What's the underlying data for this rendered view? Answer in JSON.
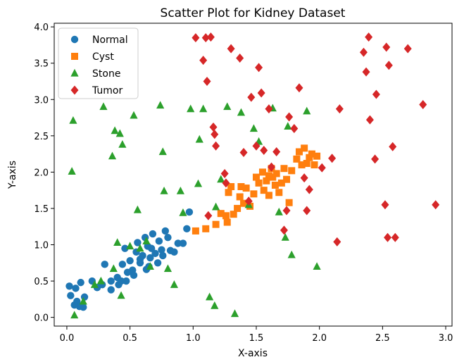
{
  "chart_data": {
    "type": "scatter",
    "title": "Scatter Plot for Kidney Dataset",
    "xlabel": "X-axis",
    "ylabel": "Y-axis",
    "xlim": [
      -0.1,
      3.05
    ],
    "ylim": [
      -0.12,
      4.05
    ],
    "x_ticks": [
      "0.0",
      "0.5",
      "1.0",
      "1.5",
      "2.0",
      "2.5",
      "3.0"
    ],
    "y_ticks": [
      "0.0",
      "0.5",
      "1.0",
      "1.5",
      "2.0",
      "2.5",
      "3.0",
      "3.5",
      "4.0"
    ],
    "grid": false,
    "legend_position": "top-left",
    "series": [
      {
        "name": "Normal",
        "marker": "circle",
        "color": "#1f77b4",
        "points": [
          [
            0.02,
            0.43
          ],
          [
            0.03,
            0.3
          ],
          [
            0.07,
            0.4
          ],
          [
            0.08,
            0.22
          ],
          [
            0.1,
            0.15
          ],
          [
            0.11,
            0.48
          ],
          [
            0.13,
            0.14
          ],
          [
            0.14,
            0.28
          ],
          [
            0.06,
            0.17
          ],
          [
            0.2,
            0.5
          ],
          [
            0.24,
            0.41
          ],
          [
            0.28,
            0.45
          ],
          [
            0.3,
            0.73
          ],
          [
            0.35,
            0.38
          ],
          [
            0.35,
            0.5
          ],
          [
            0.4,
            0.55
          ],
          [
            0.41,
            0.45
          ],
          [
            0.43,
            0.5
          ],
          [
            0.44,
            0.73
          ],
          [
            0.46,
            0.95
          ],
          [
            0.47,
            0.5
          ],
          [
            0.5,
            0.78
          ],
          [
            0.52,
            0.65
          ],
          [
            0.53,
            0.58
          ],
          [
            0.55,
            0.9
          ],
          [
            0.56,
            1.03
          ],
          [
            0.58,
            0.75
          ],
          [
            0.6,
            0.85
          ],
          [
            0.62,
            1.1
          ],
          [
            0.63,
            0.66
          ],
          [
            0.65,
            0.7
          ],
          [
            0.66,
            0.82
          ],
          [
            0.67,
            0.95
          ],
          [
            0.68,
            1.15
          ],
          [
            0.7,
            0.88
          ],
          [
            0.72,
            0.75
          ],
          [
            0.73,
            1.05
          ],
          [
            0.75,
            0.93
          ],
          [
            0.78,
            1.19
          ],
          [
            0.8,
            1.1
          ],
          [
            0.82,
            0.92
          ],
          [
            0.85,
            0.9
          ],
          [
            0.88,
            1.02
          ],
          [
            0.92,
            1.02
          ],
          [
            0.95,
            1.22
          ],
          [
            0.97,
            1.45
          ],
          [
            0.48,
            0.62
          ],
          [
            0.58,
            0.8
          ],
          [
            0.64,
            0.98
          ],
          [
            0.76,
            0.85
          ]
        ]
      },
      {
        "name": "Cyst",
        "marker": "square",
        "color": "#ff7f0e",
        "points": [
          [
            1.02,
            1.19
          ],
          [
            1.1,
            1.22
          ],
          [
            1.18,
            1.28
          ],
          [
            1.22,
            1.43
          ],
          [
            1.26,
            1.4
          ],
          [
            1.27,
            1.31
          ],
          [
            1.28,
            1.72
          ],
          [
            1.3,
            1.8
          ],
          [
            1.32,
            1.42
          ],
          [
            1.35,
            1.5
          ],
          [
            1.37,
            1.66
          ],
          [
            1.38,
            1.8
          ],
          [
            1.4,
            1.57
          ],
          [
            1.42,
            1.78
          ],
          [
            1.45,
            1.53
          ],
          [
            1.48,
            1.7
          ],
          [
            1.5,
            1.93
          ],
          [
            1.52,
            1.85
          ],
          [
            1.55,
            2.0
          ],
          [
            1.56,
            1.75
          ],
          [
            1.58,
            1.88
          ],
          [
            1.6,
            1.68
          ],
          [
            1.62,
            2.05
          ],
          [
            1.63,
            1.93
          ],
          [
            1.65,
            1.82
          ],
          [
            1.66,
            1.98
          ],
          [
            1.68,
            1.72
          ],
          [
            1.7,
            1.85
          ],
          [
            1.72,
            2.05
          ],
          [
            1.74,
            1.9
          ],
          [
            1.76,
            1.58
          ],
          [
            1.78,
            2.02
          ],
          [
            1.82,
            2.18
          ],
          [
            1.84,
            2.28
          ],
          [
            1.86,
            2.1
          ],
          [
            1.88,
            2.33
          ],
          [
            1.9,
            2.12
          ],
          [
            1.92,
            2.2
          ],
          [
            1.94,
            2.25
          ],
          [
            1.96,
            2.1
          ],
          [
            1.98,
            2.22
          ],
          [
            1.6,
            1.95
          ]
        ]
      },
      {
        "name": "Stone",
        "marker": "triangle",
        "color": "#2ca02c",
        "points": [
          [
            0.04,
            2.01
          ],
          [
            0.05,
            2.71
          ],
          [
            0.06,
            0.03
          ],
          [
            0.13,
            0.22
          ],
          [
            0.22,
            0.45
          ],
          [
            0.27,
            0.5
          ],
          [
            0.29,
            2.9
          ],
          [
            0.36,
            2.22
          ],
          [
            0.37,
            0.67
          ],
          [
            0.38,
            2.57
          ],
          [
            0.4,
            1.03
          ],
          [
            0.42,
            2.53
          ],
          [
            0.43,
            0.3
          ],
          [
            0.44,
            2.38
          ],
          [
            0.5,
            0.98
          ],
          [
            0.53,
            2.78
          ],
          [
            0.56,
            1.48
          ],
          [
            0.58,
            0.95
          ],
          [
            0.63,
            1.05
          ],
          [
            0.66,
            0.7
          ],
          [
            0.74,
            2.92
          ],
          [
            0.76,
            2.28
          ],
          [
            0.77,
            1.74
          ],
          [
            0.8,
            0.67
          ],
          [
            0.85,
            0.45
          ],
          [
            0.9,
            1.74
          ],
          [
            0.92,
            1.44
          ],
          [
            0.98,
            2.87
          ],
          [
            1.04,
            1.84
          ],
          [
            1.05,
            2.45
          ],
          [
            1.08,
            2.87
          ],
          [
            1.13,
            0.28
          ],
          [
            1.17,
            0.16
          ],
          [
            1.18,
            1.52
          ],
          [
            1.22,
            1.9
          ],
          [
            1.27,
            2.9
          ],
          [
            1.33,
            0.05
          ],
          [
            1.38,
            2.82
          ],
          [
            1.44,
            1.55
          ],
          [
            1.48,
            2.6
          ],
          [
            1.52,
            2.42
          ],
          [
            1.63,
            2.88
          ],
          [
            1.73,
            1.1
          ],
          [
            1.75,
            2.63
          ],
          [
            1.78,
            0.86
          ],
          [
            1.9,
            2.84
          ],
          [
            1.98,
            0.7
          ],
          [
            1.68,
            1.45
          ]
        ]
      },
      {
        "name": "Tumor",
        "marker": "diamond",
        "color": "#d62728",
        "points": [
          [
            1.02,
            3.85
          ],
          [
            1.08,
            3.54
          ],
          [
            1.1,
            3.85
          ],
          [
            1.11,
            3.25
          ],
          [
            1.14,
            3.86
          ],
          [
            1.16,
            2.62
          ],
          [
            1.17,
            2.52
          ],
          [
            1.18,
            2.36
          ],
          [
            1.12,
            1.4
          ],
          [
            1.25,
            1.98
          ],
          [
            1.26,
            1.85
          ],
          [
            1.3,
            3.7
          ],
          [
            1.37,
            3.57
          ],
          [
            1.4,
            2.27
          ],
          [
            1.44,
            1.6
          ],
          [
            1.46,
            3.03
          ],
          [
            1.5,
            2.36
          ],
          [
            1.52,
            3.44
          ],
          [
            1.54,
            3.09
          ],
          [
            1.56,
            2.3
          ],
          [
            1.6,
            2.87
          ],
          [
            1.62,
            2.07
          ],
          [
            1.66,
            2.28
          ],
          [
            1.72,
            1.2
          ],
          [
            1.74,
            1.47
          ],
          [
            1.76,
            2.76
          ],
          [
            1.8,
            2.6
          ],
          [
            1.84,
            3.16
          ],
          [
            1.88,
            1.92
          ],
          [
            1.9,
            1.47
          ],
          [
            1.92,
            1.76
          ],
          [
            2.02,
            2.06
          ],
          [
            2.1,
            2.19
          ],
          [
            2.14,
            1.04
          ],
          [
            2.16,
            2.87
          ],
          [
            2.35,
            3.65
          ],
          [
            2.37,
            3.38
          ],
          [
            2.39,
            3.86
          ],
          [
            2.4,
            2.72
          ],
          [
            2.44,
            2.18
          ],
          [
            2.45,
            3.07
          ],
          [
            2.52,
            1.55
          ],
          [
            2.53,
            3.72
          ],
          [
            2.54,
            1.1
          ],
          [
            2.55,
            3.47
          ],
          [
            2.58,
            2.35
          ],
          [
            2.6,
            1.1
          ],
          [
            2.7,
            3.7
          ],
          [
            2.82,
            2.93
          ],
          [
            2.92,
            1.55
          ]
        ]
      }
    ]
  }
}
